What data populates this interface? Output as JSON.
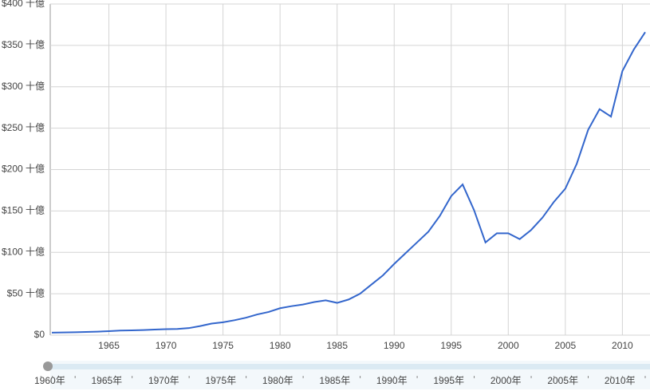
{
  "chart_data": {
    "type": "line",
    "x": [
      1960,
      1961,
      1962,
      1963,
      1964,
      1965,
      1966,
      1967,
      1968,
      1969,
      1970,
      1971,
      1972,
      1973,
      1974,
      1975,
      1976,
      1977,
      1978,
      1979,
      1980,
      1981,
      1982,
      1983,
      1984,
      1985,
      1986,
      1987,
      1988,
      1989,
      1990,
      1991,
      1992,
      1993,
      1994,
      1995,
      1996,
      1997,
      1998,
      1999,
      2000,
      2001,
      2002,
      2003,
      2004,
      2005,
      2006,
      2007,
      2008,
      2009,
      2010,
      2011,
      2012
    ],
    "series": [
      {
        "color": "#3366cc",
        "values": [
          3,
          3.2,
          3.5,
          3.8,
          4.2,
          4.8,
          5.5,
          5.8,
          6.2,
          6.8,
          7.2,
          7.5,
          8.5,
          11,
          14,
          15.5,
          18,
          21,
          25,
          28,
          32.5,
          35,
          37,
          40,
          42,
          39,
          43,
          50,
          61,
          72,
          86,
          99,
          112,
          125,
          144,
          168,
          182,
          151,
          112,
          123,
          123,
          116,
          127,
          142,
          161,
          177,
          207,
          248,
          273,
          264,
          319,
          345,
          366
        ]
      }
    ],
    "xlim": [
      1960,
      2012
    ],
    "xticks": [
      1965,
      1970,
      1975,
      1980,
      1985,
      1990,
      1995,
      2000,
      2005,
      2010
    ],
    "ylim": [
      0,
      400
    ],
    "yticks": [
      {
        "value": 0,
        "label": "$0"
      },
      {
        "value": 50,
        "label": "$50 十億"
      },
      {
        "value": 100,
        "label": "$100 十億"
      },
      {
        "value": 150,
        "label": "$150 十億"
      },
      {
        "value": 200,
        "label": "$200 十億"
      },
      {
        "value": 250,
        "label": "$250 十億"
      },
      {
        "value": 300,
        "label": "$300 十億"
      },
      {
        "value": 350,
        "label": "$350 十億"
      },
      {
        "value": 400,
        "label": "$400 十億"
      }
    ],
    "grid": true,
    "range_labels": [
      "1960年",
      "1965年",
      "1970年",
      "1975年",
      "1980年",
      "1985年",
      "1990年",
      "1995年",
      "2000年",
      "2005年",
      "2010年"
    ]
  }
}
